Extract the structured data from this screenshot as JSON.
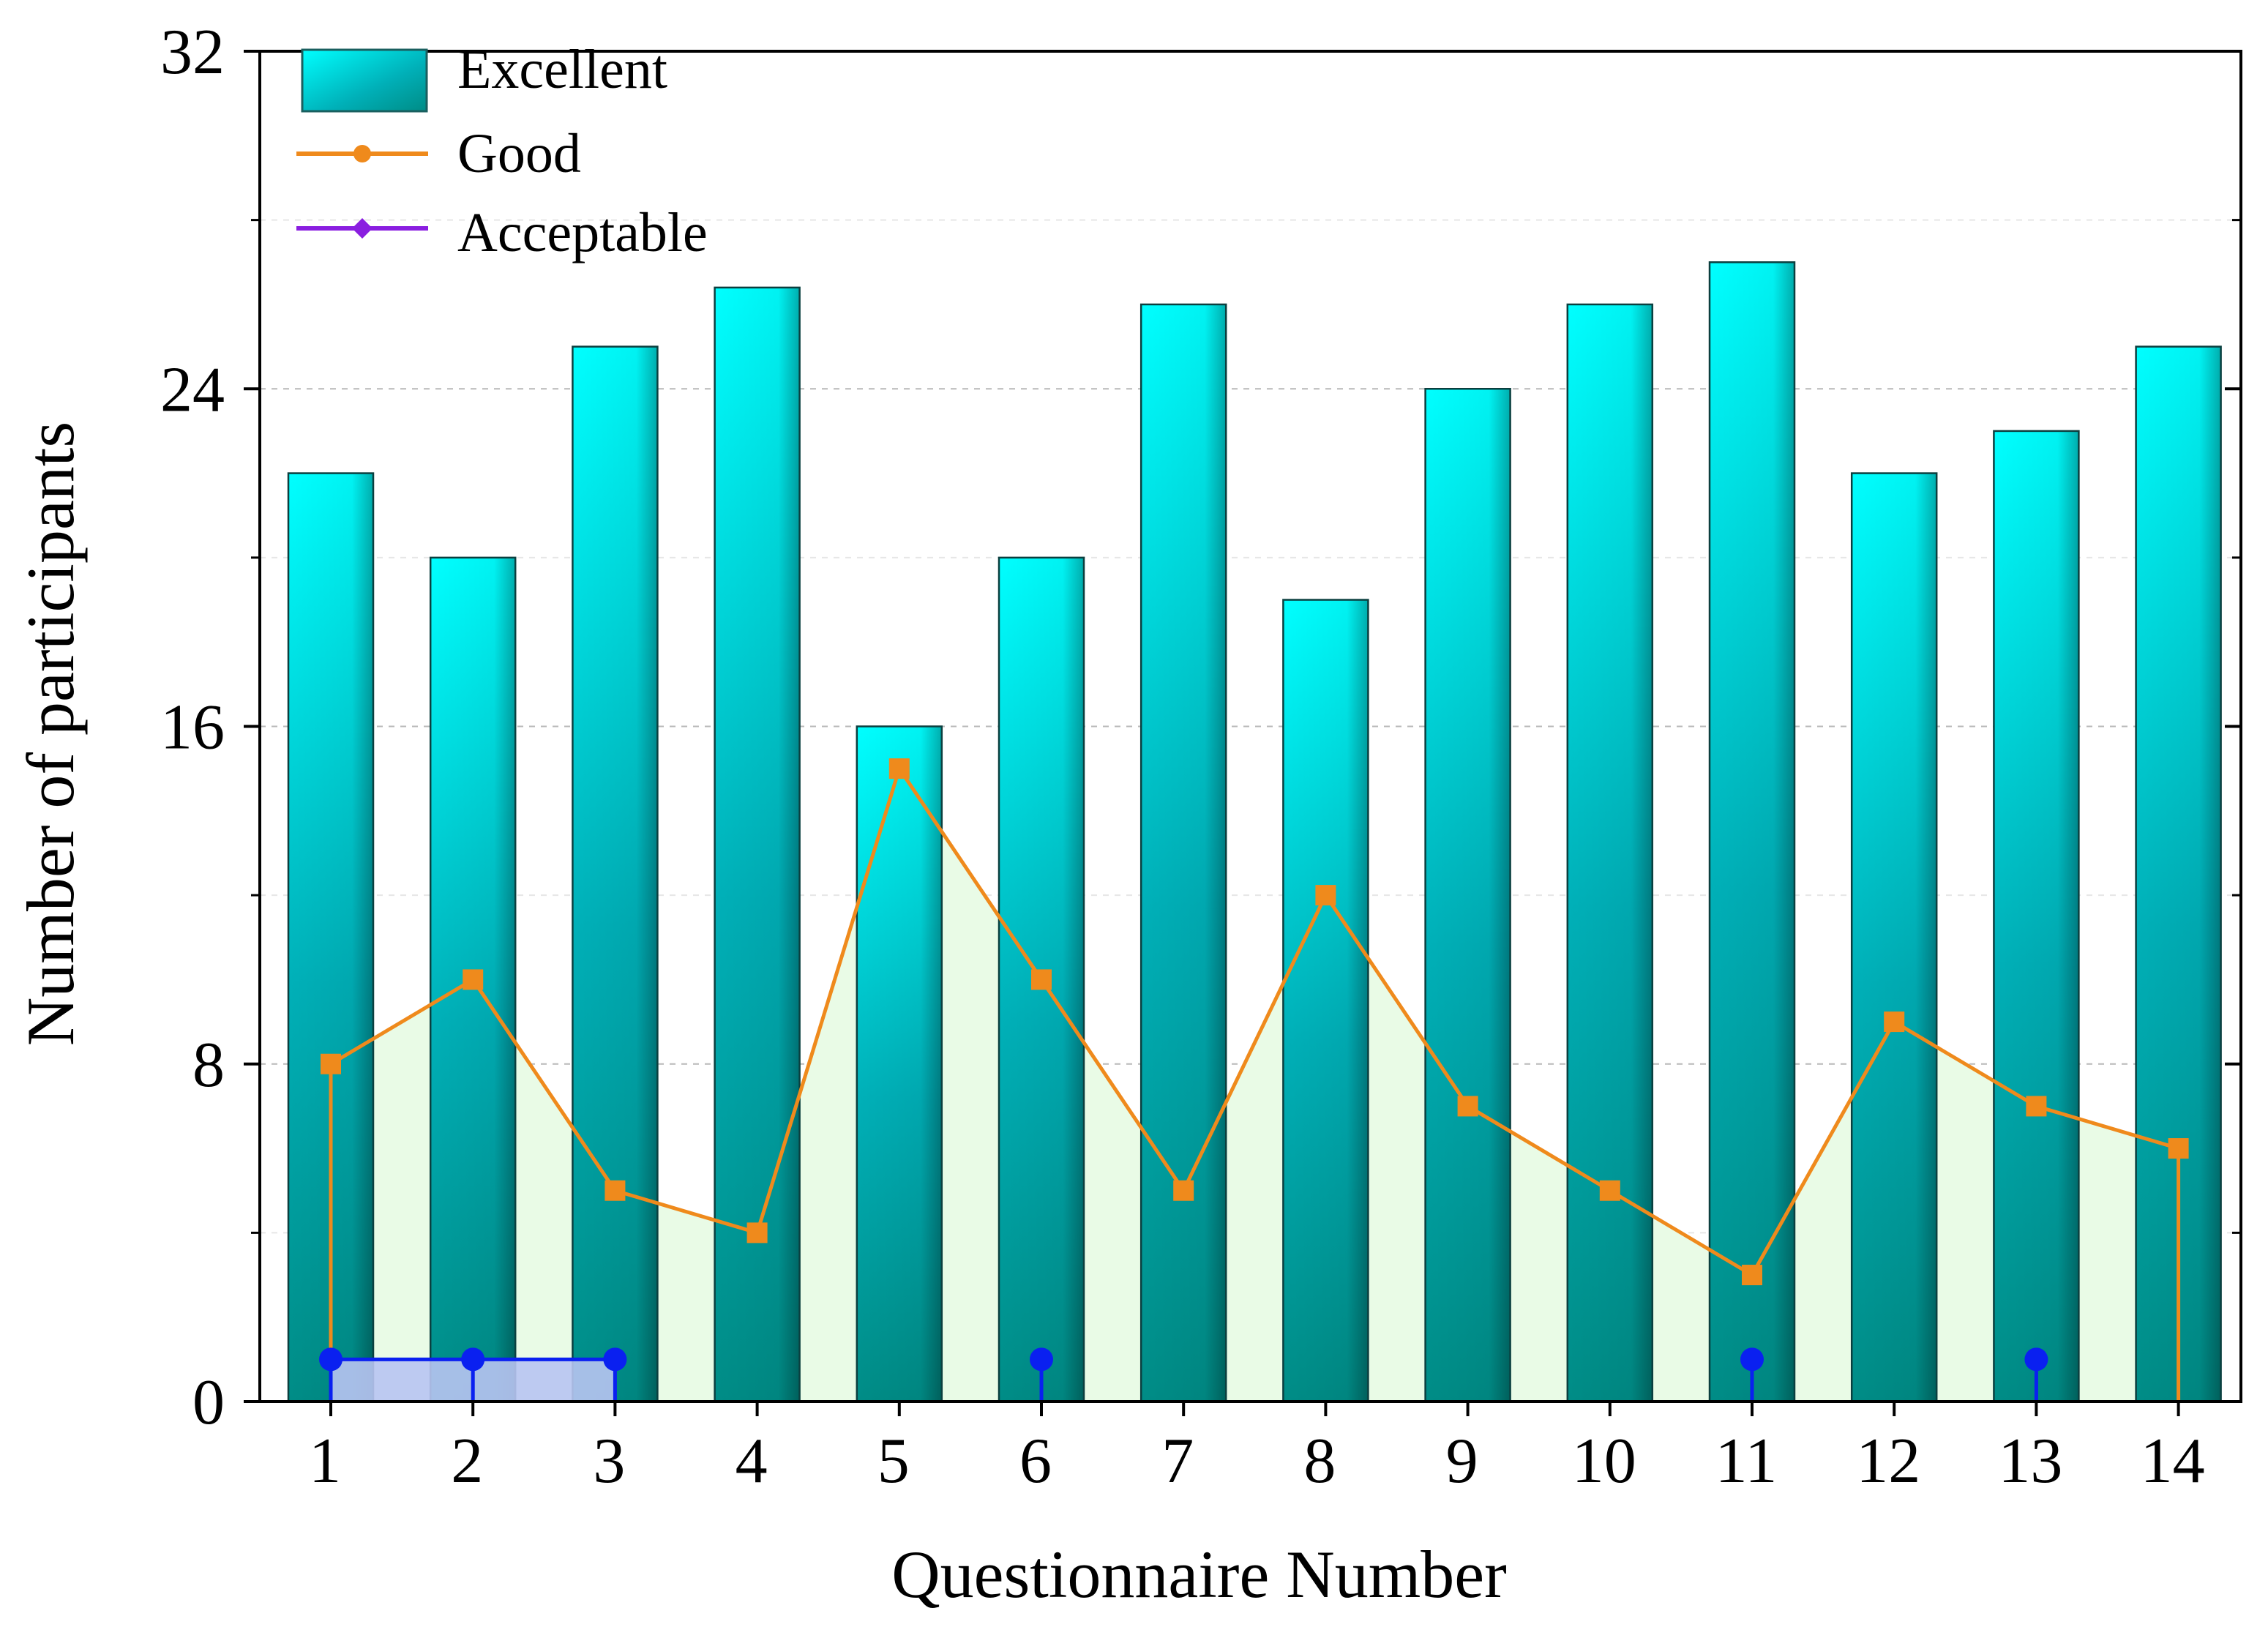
{
  "chart_data": {
    "type": "bar",
    "xlabel": "Questionnaire Number",
    "ylabel": "Number of participants",
    "categories": [
      "1",
      "2",
      "3",
      "4",
      "5",
      "6",
      "7",
      "8",
      "9",
      "10",
      "11",
      "12",
      "13",
      "14"
    ],
    "ylim": [
      0,
      32
    ],
    "yticks": [
      0,
      8,
      16,
      24,
      32
    ],
    "grid": true,
    "legend_position": "top-left",
    "series": [
      {
        "name": "Excellent",
        "type": "bar",
        "values": [
          22,
          20,
          25,
          26.4,
          16,
          20,
          26,
          19,
          24,
          26,
          27,
          22,
          23,
          25
        ]
      },
      {
        "name": "Good",
        "type": "line-area",
        "values": [
          8,
          10,
          5,
          4,
          15,
          10,
          5,
          12,
          7,
          5,
          3,
          9,
          7,
          6
        ]
      },
      {
        "name": "Acceptable",
        "type": "dot",
        "values": [
          1,
          1,
          1,
          null,
          null,
          1,
          null,
          null,
          null,
          null,
          1,
          null,
          1,
          null
        ]
      }
    ],
    "colors": {
      "excellent_top": "#00ffff",
      "excellent_mid": "#00b0b8",
      "excellent_bottom": "#008c86",
      "good_line": "#ef8a1c",
      "good_fill": "#e9fbe6",
      "acceptable": "#0a20f0",
      "acceptable_fill": "#b8c4f2",
      "acceptable_legend": "#8a1ee0",
      "grid": "#b8b8b8"
    }
  }
}
